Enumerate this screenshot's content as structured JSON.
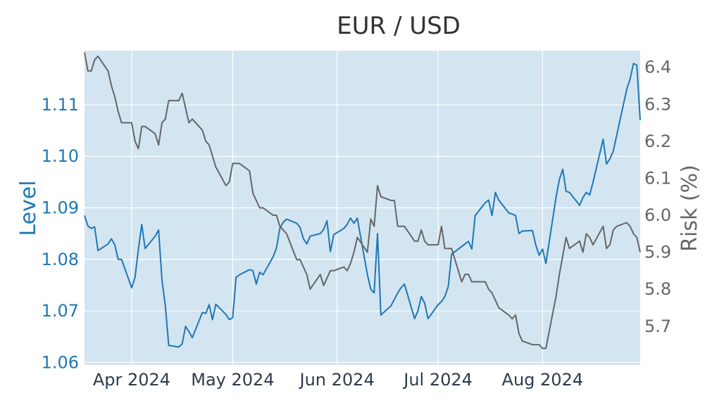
{
  "chart_data": {
    "type": "line",
    "title": "EUR / USD",
    "xlabel": "",
    "x_ticks": [
      "Apr 2024",
      "May 2024",
      "Jun 2024",
      "Jul 2024",
      "Aug 2024"
    ],
    "x_tick_dates": [
      "2024-04-01",
      "2024-05-01",
      "2024-06-01",
      "2024-07-01",
      "2024-08-01"
    ],
    "xlim": [
      "2024-03-18",
      "2024-08-30"
    ],
    "grid": true,
    "plot_bg": "#d3e5f1",
    "axes": {
      "left": {
        "label": "Level",
        "ylim": [
          1.0595,
          1.1205
        ],
        "ticks": [
          "1.06",
          "1.07",
          "1.08",
          "1.09",
          "1.10",
          "1.11"
        ],
        "color": "#1f77b4"
      },
      "right": {
        "label": "Risk (%)",
        "ylim": [
          5.595,
          6.445
        ],
        "ticks": [
          "5.7",
          "5.8",
          "5.9",
          "6.0",
          "6.1",
          "6.2",
          "6.3",
          "6.4"
        ],
        "color": "#666666"
      }
    },
    "series": [
      {
        "axis": "left",
        "color": "#1f77b4",
        "points": [
          [
            "2024-03-18",
            1.0885
          ],
          [
            "2024-03-19",
            1.0865
          ],
          [
            "2024-03-20",
            1.086
          ],
          [
            "2024-03-21",
            1.0863
          ],
          [
            "2024-03-22",
            1.0817
          ],
          [
            "2024-03-25",
            1.083
          ],
          [
            "2024-03-26",
            1.084
          ],
          [
            "2024-03-27",
            1.0828
          ],
          [
            "2024-03-28",
            1.08
          ],
          [
            "2024-03-29",
            1.08
          ],
          [
            "2024-04-01",
            1.0745
          ],
          [
            "2024-04-02",
            1.0765
          ],
          [
            "2024-04-03",
            1.082
          ],
          [
            "2024-04-04",
            1.0868
          ],
          [
            "2024-04-05",
            1.0821
          ],
          [
            "2024-04-08",
            1.0845
          ],
          [
            "2024-04-09",
            1.0857
          ],
          [
            "2024-04-10",
            1.076
          ],
          [
            "2024-04-11",
            1.071
          ],
          [
            "2024-04-12",
            1.0633
          ],
          [
            "2024-04-15",
            1.063
          ],
          [
            "2024-04-16",
            1.0636
          ],
          [
            "2024-04-17",
            1.067
          ],
          [
            "2024-04-18",
            1.066
          ],
          [
            "2024-04-19",
            1.0648
          ],
          [
            "2024-04-22",
            1.0697
          ],
          [
            "2024-04-23",
            1.0695
          ],
          [
            "2024-04-24",
            1.0712
          ],
          [
            "2024-04-25",
            1.0683
          ],
          [
            "2024-04-26",
            1.0713
          ],
          [
            "2024-04-29",
            1.0693
          ],
          [
            "2024-04-30",
            1.0683
          ],
          [
            "2024-05-01",
            1.0687
          ],
          [
            "2024-05-02",
            1.0765
          ],
          [
            "2024-05-03",
            1.077
          ],
          [
            "2024-05-06",
            1.078
          ],
          [
            "2024-05-07",
            1.0778
          ],
          [
            "2024-05-08",
            1.0752
          ],
          [
            "2024-05-09",
            1.0775
          ],
          [
            "2024-05-10",
            1.077
          ],
          [
            "2024-05-13",
            1.0805
          ],
          [
            "2024-05-14",
            1.0822
          ],
          [
            "2024-05-15",
            1.086
          ],
          [
            "2024-05-16",
            1.0872
          ],
          [
            "2024-05-17",
            1.0878
          ],
          [
            "2024-05-20",
            1.087
          ],
          [
            "2024-05-21",
            1.0862
          ],
          [
            "2024-05-22",
            1.084
          ],
          [
            "2024-05-23",
            1.083
          ],
          [
            "2024-05-24",
            1.0845
          ],
          [
            "2024-05-27",
            1.085
          ],
          [
            "2024-05-28",
            1.0858
          ],
          [
            "2024-05-29",
            1.0875
          ],
          [
            "2024-05-30",
            1.0815
          ],
          [
            "2024-05-31",
            1.0848
          ],
          [
            "2024-06-03",
            1.086
          ],
          [
            "2024-06-04",
            1.0868
          ],
          [
            "2024-06-05",
            1.088
          ],
          [
            "2024-06-06",
            1.087
          ],
          [
            "2024-06-07",
            1.088
          ],
          [
            "2024-06-10",
            1.077
          ],
          [
            "2024-06-11",
            1.0742
          ],
          [
            "2024-06-12",
            1.0735
          ],
          [
            "2024-06-13",
            1.085
          ],
          [
            "2024-06-14",
            1.0692
          ],
          [
            "2024-06-17",
            1.071
          ],
          [
            "2024-06-18",
            1.0722
          ],
          [
            "2024-06-19",
            1.0735
          ],
          [
            "2024-06-20",
            1.0745
          ],
          [
            "2024-06-21",
            1.0752
          ],
          [
            "2024-06-24",
            1.0685
          ],
          [
            "2024-06-25",
            1.07
          ],
          [
            "2024-06-26",
            1.0728
          ],
          [
            "2024-06-27",
            1.0715
          ],
          [
            "2024-06-28",
            1.0685
          ],
          [
            "2024-07-01",
            1.0712
          ],
          [
            "2024-07-02",
            1.0718
          ],
          [
            "2024-07-03",
            1.0728
          ],
          [
            "2024-07-04",
            1.0747
          ],
          [
            "2024-07-05",
            1.081
          ],
          [
            "2024-07-08",
            1.0825
          ],
          [
            "2024-07-09",
            1.083
          ],
          [
            "2024-07-10",
            1.0835
          ],
          [
            "2024-07-11",
            1.082
          ],
          [
            "2024-07-12",
            1.0885
          ],
          [
            "2024-07-15",
            1.091
          ],
          [
            "2024-07-16",
            1.0915
          ],
          [
            "2024-07-17",
            1.0885
          ],
          [
            "2024-07-18",
            1.093
          ],
          [
            "2024-07-19",
            1.0915
          ],
          [
            "2024-07-22",
            1.089
          ],
          [
            "2024-07-23",
            1.0888
          ],
          [
            "2024-07-24",
            1.0885
          ],
          [
            "2024-07-25",
            1.085
          ],
          [
            "2024-07-26",
            1.0855
          ],
          [
            "2024-07-29",
            1.0856
          ],
          [
            "2024-07-30",
            1.0828
          ],
          [
            "2024-07-31",
            1.0808
          ],
          [
            "2024-08-01",
            1.082
          ],
          [
            "2024-08-02",
            1.0792
          ],
          [
            "2024-08-05",
            1.092
          ],
          [
            "2024-08-06",
            1.0955
          ],
          [
            "2024-08-07",
            1.0975
          ],
          [
            "2024-08-08",
            1.0932
          ],
          [
            "2024-08-09",
            1.093
          ],
          [
            "2024-08-12",
            1.0905
          ],
          [
            "2024-08-13",
            1.092
          ],
          [
            "2024-08-14",
            1.093
          ],
          [
            "2024-08-15",
            1.0925
          ],
          [
            "2024-08-16",
            1.095
          ],
          [
            "2024-08-19",
            1.1033
          ],
          [
            "2024-08-20",
            1.0985
          ],
          [
            "2024-08-21",
            1.0995
          ],
          [
            "2024-08-22",
            1.101
          ],
          [
            "2024-08-23",
            1.104
          ],
          [
            "2024-08-26",
            1.113
          ],
          [
            "2024-08-27",
            1.115
          ],
          [
            "2024-08-28",
            1.118
          ],
          [
            "2024-08-29",
            1.1177
          ],
          [
            "2024-08-30",
            1.107
          ]
        ]
      },
      {
        "axis": "right",
        "color": "#666666",
        "points": [
          [
            "2024-03-18",
            6.44
          ],
          [
            "2024-03-19",
            6.39
          ],
          [
            "2024-03-20",
            6.39
          ],
          [
            "2024-03-21",
            6.42
          ],
          [
            "2024-03-22",
            6.43
          ],
          [
            "2024-03-25",
            6.39
          ],
          [
            "2024-03-26",
            6.35
          ],
          [
            "2024-03-27",
            6.32
          ],
          [
            "2024-03-28",
            6.28
          ],
          [
            "2024-03-29",
            6.25
          ],
          [
            "2024-04-01",
            6.25
          ],
          [
            "2024-04-02",
            6.2
          ],
          [
            "2024-04-03",
            6.18
          ],
          [
            "2024-04-04",
            6.24
          ],
          [
            "2024-04-05",
            6.24
          ],
          [
            "2024-04-08",
            6.22
          ],
          [
            "2024-04-09",
            6.19
          ],
          [
            "2024-04-10",
            6.25
          ],
          [
            "2024-04-11",
            6.26
          ],
          [
            "2024-04-12",
            6.31
          ],
          [
            "2024-04-15",
            6.31
          ],
          [
            "2024-04-16",
            6.33
          ],
          [
            "2024-04-17",
            6.29
          ],
          [
            "2024-04-18",
            6.25
          ],
          [
            "2024-04-19",
            6.26
          ],
          [
            "2024-04-22",
            6.23
          ],
          [
            "2024-04-23",
            6.2
          ],
          [
            "2024-04-24",
            6.19
          ],
          [
            "2024-04-25",
            6.16
          ],
          [
            "2024-04-26",
            6.13
          ],
          [
            "2024-04-29",
            6.08
          ],
          [
            "2024-04-30",
            6.09
          ],
          [
            "2024-05-01",
            6.14
          ],
          [
            "2024-05-02",
            6.14
          ],
          [
            "2024-05-03",
            6.14
          ],
          [
            "2024-05-06",
            6.12
          ],
          [
            "2024-05-07",
            6.06
          ],
          [
            "2024-05-08",
            6.04
          ],
          [
            "2024-05-09",
            6.02
          ],
          [
            "2024-05-10",
            6.02
          ],
          [
            "2024-05-13",
            6.0
          ],
          [
            "2024-05-14",
            6.0
          ],
          [
            "2024-05-15",
            5.97
          ],
          [
            "2024-05-16",
            5.96
          ],
          [
            "2024-05-17",
            5.95
          ],
          [
            "2024-05-20",
            5.88
          ],
          [
            "2024-05-21",
            5.88
          ],
          [
            "2024-05-22",
            5.86
          ],
          [
            "2024-05-23",
            5.84
          ],
          [
            "2024-05-24",
            5.8
          ],
          [
            "2024-05-27",
            5.84
          ],
          [
            "2024-05-28",
            5.81
          ],
          [
            "2024-05-29",
            5.83
          ],
          [
            "2024-05-30",
            5.85
          ],
          [
            "2024-05-31",
            5.85
          ],
          [
            "2024-06-03",
            5.86
          ],
          [
            "2024-06-04",
            5.85
          ],
          [
            "2024-06-05",
            5.87
          ],
          [
            "2024-06-06",
            5.9
          ],
          [
            "2024-06-07",
            5.94
          ],
          [
            "2024-06-10",
            5.9
          ],
          [
            "2024-06-11",
            5.99
          ],
          [
            "2024-06-12",
            5.97
          ],
          [
            "2024-06-13",
            6.08
          ],
          [
            "2024-06-14",
            6.05
          ],
          [
            "2024-06-17",
            6.04
          ],
          [
            "2024-06-18",
            6.04
          ],
          [
            "2024-06-19",
            5.97
          ],
          [
            "2024-06-20",
            5.97
          ],
          [
            "2024-06-21",
            5.97
          ],
          [
            "2024-06-24",
            5.93
          ],
          [
            "2024-06-25",
            5.93
          ],
          [
            "2024-06-26",
            5.96
          ],
          [
            "2024-06-27",
            5.93
          ],
          [
            "2024-06-28",
            5.92
          ],
          [
            "2024-07-01",
            5.92
          ],
          [
            "2024-07-02",
            5.97
          ],
          [
            "2024-07-03",
            5.91
          ],
          [
            "2024-07-04",
            5.91
          ],
          [
            "2024-07-05",
            5.91
          ],
          [
            "2024-07-08",
            5.82
          ],
          [
            "2024-07-09",
            5.84
          ],
          [
            "2024-07-10",
            5.84
          ],
          [
            "2024-07-11",
            5.82
          ],
          [
            "2024-07-12",
            5.82
          ],
          [
            "2024-07-15",
            5.82
          ],
          [
            "2024-07-16",
            5.8
          ],
          [
            "2024-07-17",
            5.79
          ],
          [
            "2024-07-18",
            5.77
          ],
          [
            "2024-07-19",
            5.75
          ],
          [
            "2024-07-22",
            5.73
          ],
          [
            "2024-07-23",
            5.72
          ],
          [
            "2024-07-24",
            5.73
          ],
          [
            "2024-07-25",
            5.68
          ],
          [
            "2024-07-26",
            5.66
          ],
          [
            "2024-07-29",
            5.65
          ],
          [
            "2024-07-30",
            5.65
          ],
          [
            "2024-07-31",
            5.65
          ],
          [
            "2024-08-01",
            5.64
          ],
          [
            "2024-08-02",
            5.64
          ],
          [
            "2024-08-05",
            5.78
          ],
          [
            "2024-08-06",
            5.84
          ],
          [
            "2024-08-07",
            5.89
          ],
          [
            "2024-08-08",
            5.94
          ],
          [
            "2024-08-09",
            5.91
          ],
          [
            "2024-08-12",
            5.93
          ],
          [
            "2024-08-13",
            5.9
          ],
          [
            "2024-08-14",
            5.95
          ],
          [
            "2024-08-15",
            5.94
          ],
          [
            "2024-08-16",
            5.92
          ],
          [
            "2024-08-19",
            5.97
          ],
          [
            "2024-08-20",
            5.91
          ],
          [
            "2024-08-21",
            5.92
          ],
          [
            "2024-08-22",
            5.96
          ],
          [
            "2024-08-23",
            5.97
          ],
          [
            "2024-08-26",
            5.98
          ],
          [
            "2024-08-27",
            5.97
          ],
          [
            "2024-08-28",
            5.95
          ],
          [
            "2024-08-29",
            5.94
          ],
          [
            "2024-08-30",
            5.9
          ]
        ]
      }
    ]
  }
}
